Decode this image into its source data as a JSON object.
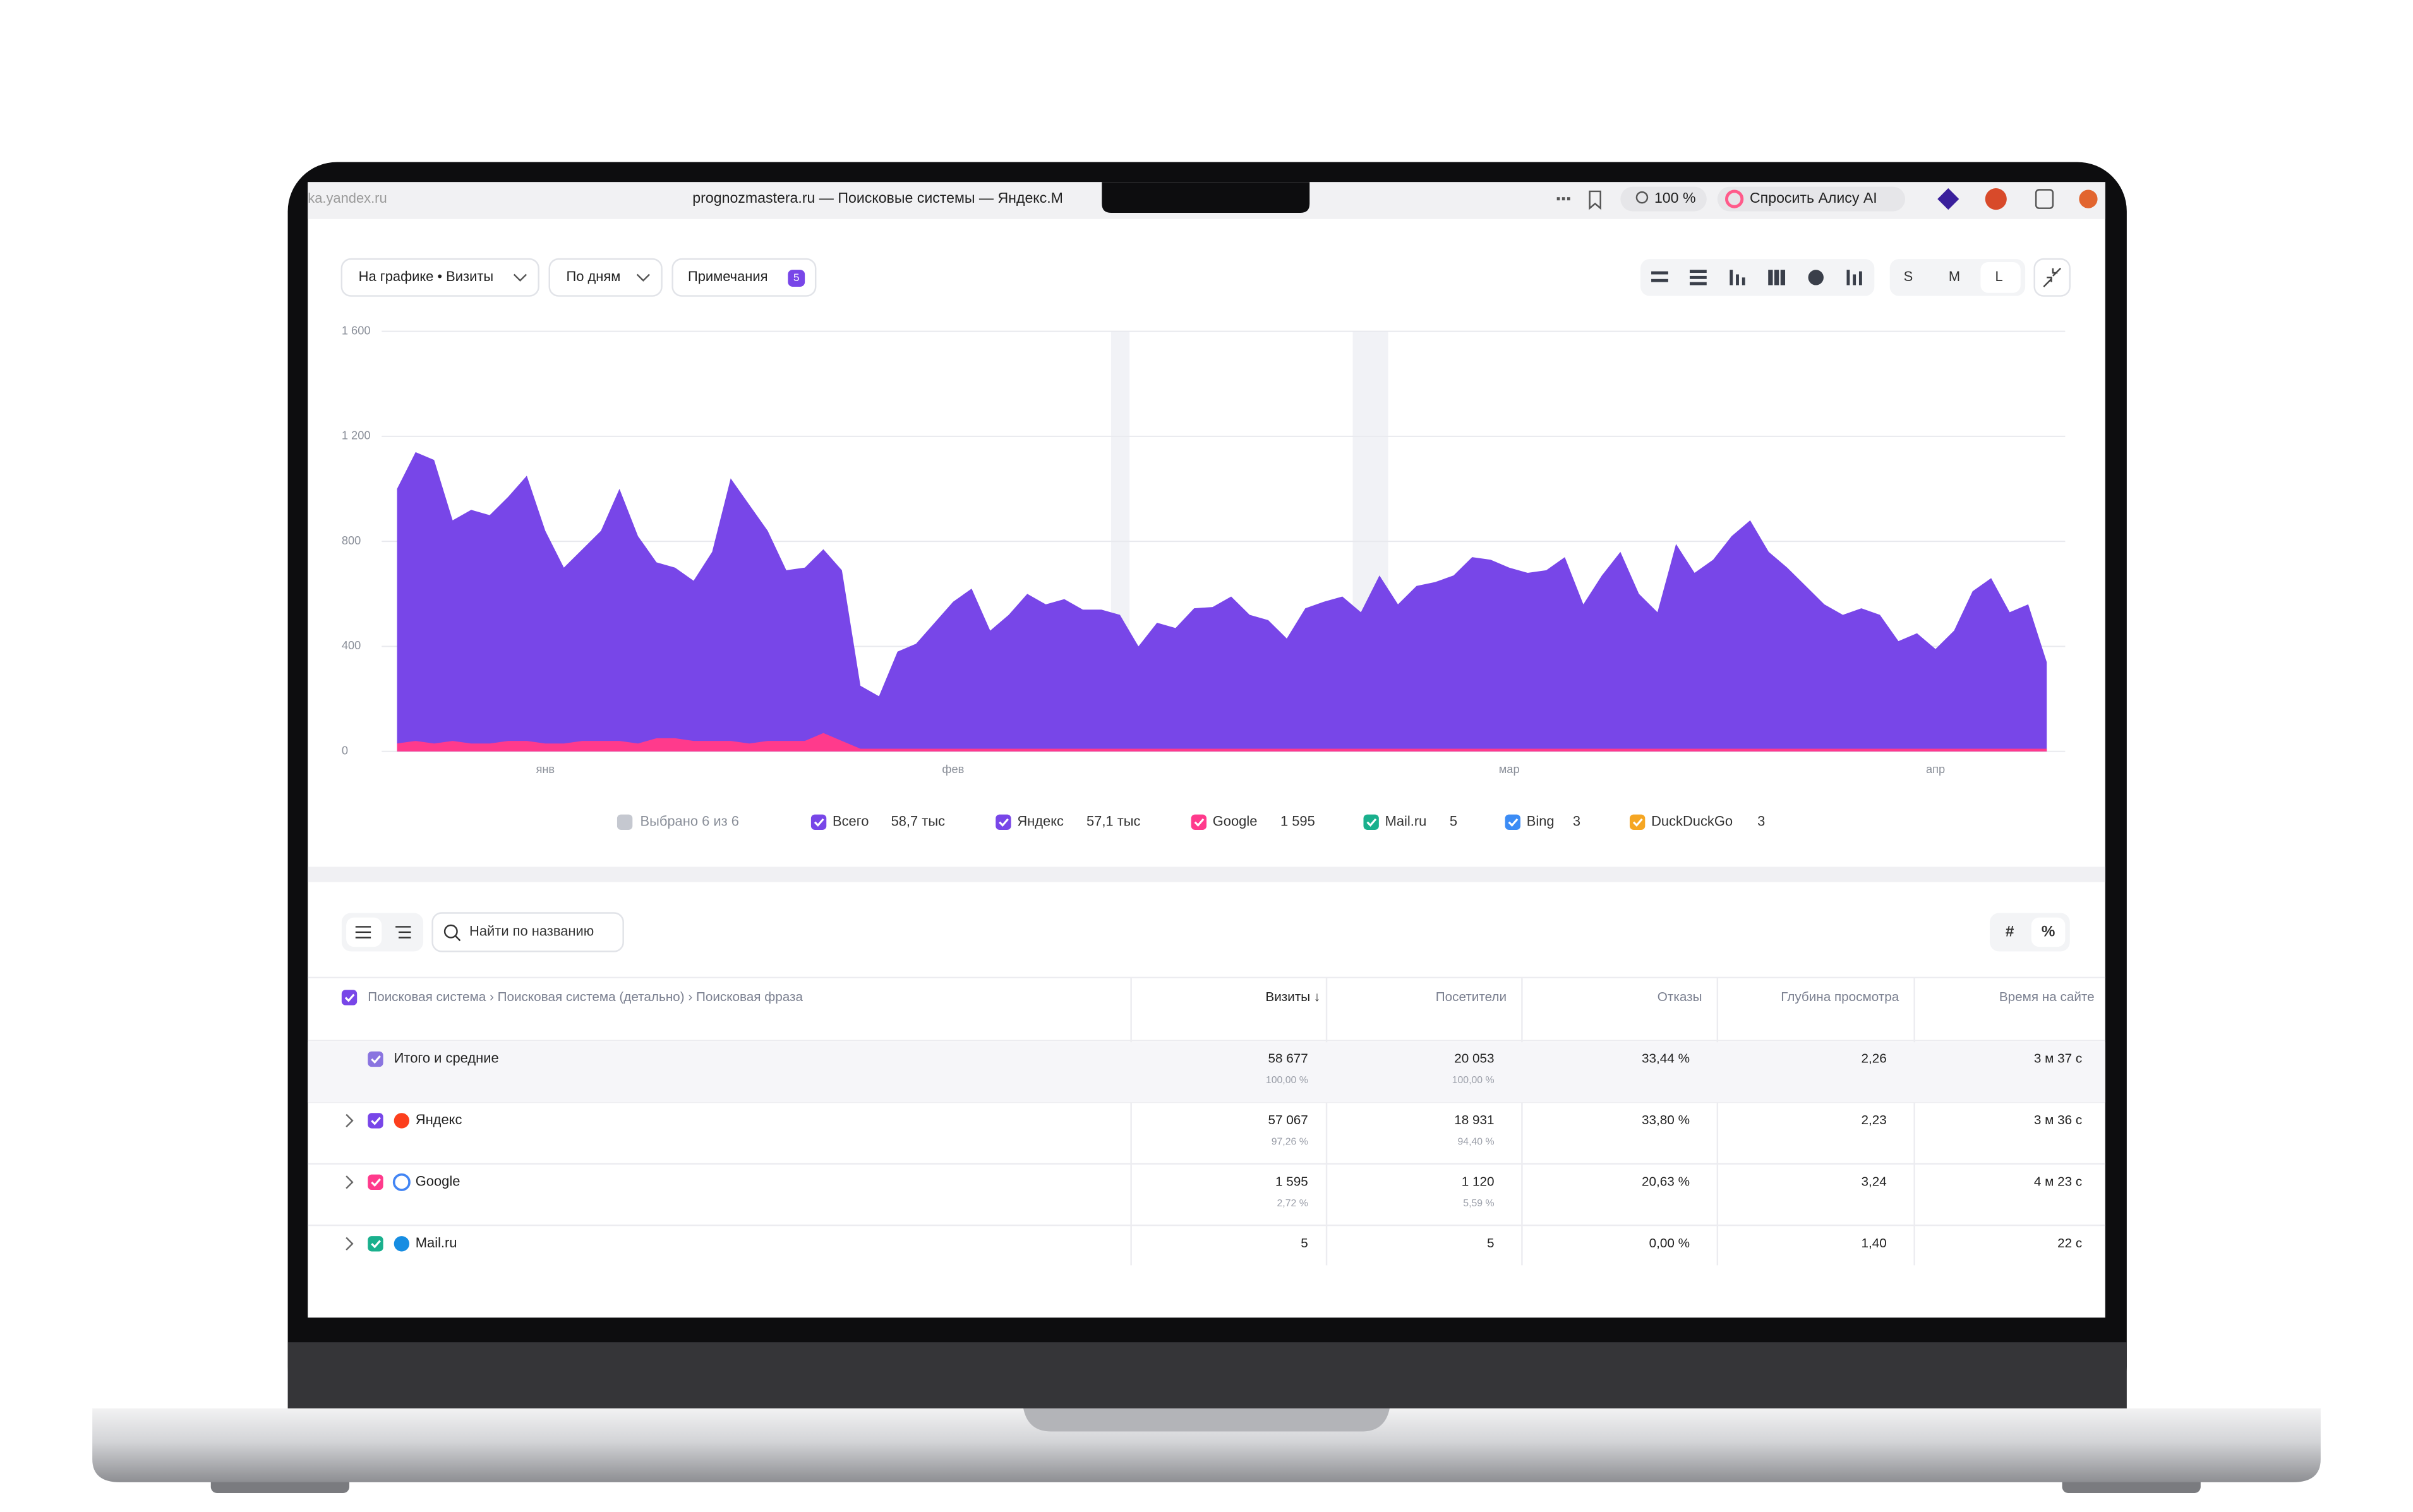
{
  "browser": {
    "address": "ka.yandex.ru",
    "tab_title": "prognozmastera.ru — Поисковые системы — Яндекс.М",
    "zoom": "100 %",
    "assistant": "Спросить Алису AI"
  },
  "toolbar": {
    "chart_metric": "На графике • Визиты",
    "grouping": "По дням",
    "notes": "Примечания",
    "notes_count": "5",
    "sizes": [
      "S",
      "M",
      "L"
    ]
  },
  "chart_data": {
    "type": "area",
    "categories": [
      null,
      null,
      null,
      null,
      null,
      null,
      null,
      null,
      "янв",
      null,
      null,
      null,
      null,
      null,
      null,
      null,
      null,
      null,
      null,
      null,
      null,
      null,
      null,
      null,
      null,
      null,
      null,
      null,
      null,
      null,
      "фев",
      null,
      null,
      null,
      null,
      null,
      null,
      null,
      null,
      null,
      null,
      null,
      null,
      null,
      null,
      null,
      null,
      null,
      null,
      null,
      null,
      null,
      null,
      null,
      null,
      null,
      null,
      null,
      null,
      null,
      "мар",
      null,
      null,
      null,
      null,
      null,
      null,
      null,
      null,
      null,
      null,
      null,
      null,
      null,
      null,
      null,
      null,
      null,
      null,
      null,
      null,
      null,
      null,
      "апр",
      null,
      null,
      null,
      null,
      null,
      null
    ],
    "series": [
      {
        "name": "Всего",
        "color": "#7846e8",
        "total": "58,7 тыс",
        "values": [
          1000,
          1140,
          1110,
          880,
          920,
          900,
          970,
          1050,
          840,
          700,
          770,
          840,
          1000,
          820,
          720,
          700,
          650,
          760,
          1040,
          940,
          840,
          690,
          700,
          770,
          690,
          250,
          210,
          380,
          410,
          490,
          570,
          620,
          460,
          520,
          600,
          560,
          580,
          540,
          540,
          520,
          400,
          490,
          470,
          545,
          550,
          590,
          520,
          500,
          430,
          545,
          570,
          590,
          530,
          670,
          560,
          630,
          645,
          670,
          740,
          730,
          700,
          680,
          690,
          740,
          560,
          670,
          760,
          600,
          530,
          790,
          680,
          730,
          820,
          880,
          760,
          700,
          630,
          560,
          520,
          545,
          520,
          420,
          450,
          390,
          460,
          610,
          660,
          530,
          560,
          340
        ]
      },
      {
        "name": "Google",
        "color": "#ff3a8c",
        "total": "1 595",
        "values": [
          30,
          40,
          30,
          40,
          30,
          30,
          40,
          40,
          30,
          30,
          40,
          40,
          40,
          30,
          50,
          50,
          40,
          40,
          40,
          30,
          40,
          40,
          40,
          70,
          40,
          10,
          10,
          10,
          10,
          10,
          10,
          10,
          10,
          10,
          10,
          10,
          10,
          10,
          10,
          10,
          10,
          10,
          10,
          10,
          10,
          10,
          10,
          10,
          10,
          10,
          10,
          10,
          10,
          10,
          10,
          10,
          10,
          10,
          10,
          10,
          10,
          10,
          10,
          10,
          10,
          10,
          10,
          10,
          10,
          10,
          10,
          10,
          10,
          10,
          10,
          10,
          10,
          10,
          10,
          10,
          10,
          10,
          10,
          10,
          10,
          10,
          10,
          10,
          10,
          10
        ]
      }
    ],
    "ylim": [
      0,
      1600
    ],
    "yticks": [
      0,
      400,
      800,
      {
        "value": 1200,
        "label": "1 200"
      },
      {
        "value": 1600,
        "label": "1 600"
      }
    ],
    "grid": true,
    "selected": "Выбрано 6 из 6",
    "legend_extra": [
      {
        "name": "Яндекс",
        "total": "57,1 тыс",
        "color": "#7846e8"
      },
      {
        "name": "Mail.ru",
        "total": "5",
        "color": "#1ab08d"
      },
      {
        "name": "Bing",
        "total": "3",
        "color": "#3c8cf5"
      },
      {
        "name": "DuckDuckGo",
        "total": "3",
        "color": "#f5a623"
      }
    ]
  },
  "table": {
    "search": "Найти по названию",
    "view_buttons": [
      "#",
      "%"
    ],
    "dimension_header": "Поисковая система › Поисковая система (детально) › Поисковая фраза",
    "headers": [
      "Визиты ↓",
      "Посетители",
      "Отказы",
      "Глубина просмотра",
      "Время на сайте"
    ],
    "rows": [
      {
        "name": "Итого и средние",
        "visits": "58 677",
        "visits_share": "100,00 %",
        "visitors": "20 053",
        "visitors_share": "100,00 %",
        "bounce": "33,44 %",
        "depth": "2,26",
        "time": "3 м 37 с"
      },
      {
        "name": "Яндекс",
        "visits": "57 067",
        "visits_share": "97,26 %",
        "visitors": "18 931",
        "visitors_share": "94,40 %",
        "bounce": "33,80 %",
        "depth": "2,23",
        "time": "3 м 36 с"
      },
      {
        "name": "Google",
        "visits": "1 595",
        "visits_share": "2,72 %",
        "visitors": "1 120",
        "visitors_share": "5,59 %",
        "bounce": "20,63 %",
        "depth": "3,24",
        "time": "4 м 23 с"
      },
      {
        "name": "Mail.ru",
        "visits": "5",
        "visitors": "5",
        "bounce": "0,00 %",
        "depth": "1,40",
        "time": "22 с"
      }
    ]
  }
}
